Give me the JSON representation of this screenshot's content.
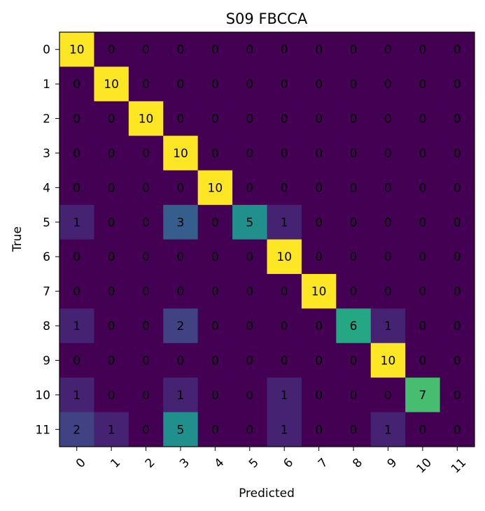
{
  "chart_data": {
    "type": "heatmap",
    "title": "S09 FBCCA",
    "xlabel": "Predicted",
    "ylabel": "True",
    "x_labels": [
      "0",
      "1",
      "2",
      "3",
      "4",
      "5",
      "6",
      "7",
      "8",
      "9",
      "10",
      "11"
    ],
    "y_labels": [
      "0",
      "1",
      "2",
      "3",
      "4",
      "5",
      "6",
      "7",
      "8",
      "9",
      "10",
      "11"
    ],
    "colormap": "viridis",
    "value_range": [
      0,
      10
    ],
    "matrix": [
      [
        10,
        0,
        0,
        0,
        0,
        0,
        0,
        0,
        0,
        0,
        0,
        0
      ],
      [
        0,
        10,
        0,
        0,
        0,
        0,
        0,
        0,
        0,
        0,
        0,
        0
      ],
      [
        0,
        0,
        10,
        0,
        0,
        0,
        0,
        0,
        0,
        0,
        0,
        0
      ],
      [
        0,
        0,
        0,
        10,
        0,
        0,
        0,
        0,
        0,
        0,
        0,
        0
      ],
      [
        0,
        0,
        0,
        0,
        10,
        0,
        0,
        0,
        0,
        0,
        0,
        0
      ],
      [
        1,
        0,
        0,
        3,
        0,
        5,
        1,
        0,
        0,
        0,
        0,
        0
      ],
      [
        0,
        0,
        0,
        0,
        0,
        0,
        10,
        0,
        0,
        0,
        0,
        0
      ],
      [
        0,
        0,
        0,
        0,
        0,
        0,
        0,
        10,
        0,
        0,
        0,
        0
      ],
      [
        1,
        0,
        0,
        2,
        0,
        0,
        0,
        0,
        6,
        1,
        0,
        0
      ],
      [
        0,
        0,
        0,
        0,
        0,
        0,
        0,
        0,
        0,
        10,
        0,
        0
      ],
      [
        1,
        0,
        0,
        1,
        0,
        0,
        1,
        0,
        0,
        0,
        7,
        0
      ],
      [
        2,
        1,
        0,
        5,
        0,
        0,
        1,
        0,
        0,
        1,
        0,
        0
      ]
    ]
  }
}
